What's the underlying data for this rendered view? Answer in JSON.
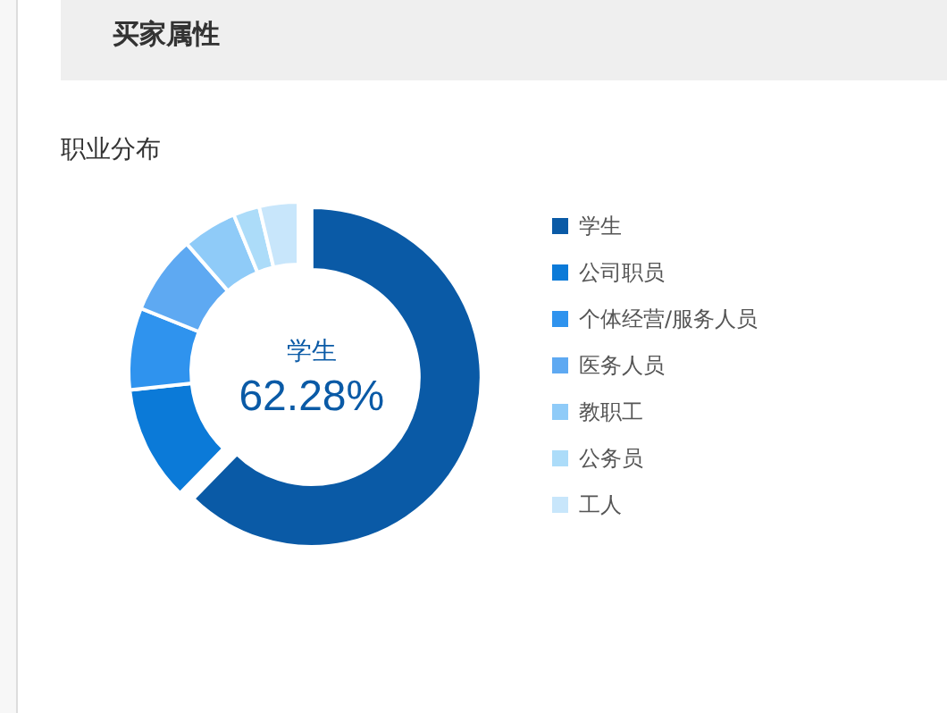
{
  "chart_data": {
    "type": "donut",
    "title": "买家属性",
    "subtitle": "职业分布",
    "categories": [
      "学生",
      "公司职员",
      "个体经营/服务人员",
      "医务人员",
      "教职工",
      "公务员",
      "工人"
    ],
    "values": [
      62.28,
      11.0,
      7.8,
      7.5,
      5.2,
      2.5,
      3.72
    ],
    "value_labels": [
      "62.28%",
      null,
      null,
      null,
      null,
      null,
      null
    ],
    "colors": [
      "#0a5aa6",
      "#0b7ad8",
      "#2f93ee",
      "#5ea9f2",
      "#8fcbf8",
      "#acdcf9",
      "#c8e6fb"
    ],
    "legend": "right"
  }
}
